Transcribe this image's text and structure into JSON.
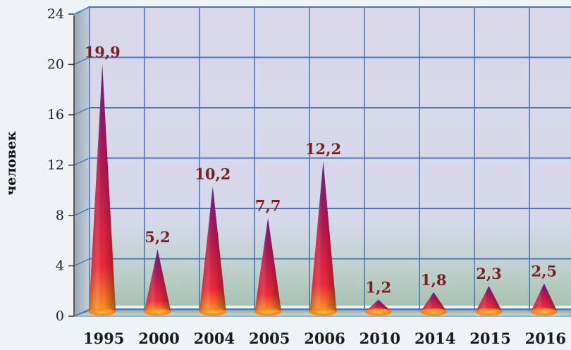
{
  "chart_data": {
    "type": "bar",
    "mark_shape": "cone",
    "categories": [
      "1995",
      "2000",
      "2004",
      "2005",
      "2006",
      "2010",
      "2014",
      "2015",
      "2016"
    ],
    "values": [
      19.9,
      5.2,
      10.2,
      7.7,
      12.2,
      1.2,
      1.8,
      2.3,
      2.5
    ],
    "value_labels": [
      "19,9",
      "5,2",
      "10,2",
      "7,7",
      "12,2",
      "1,2",
      "1,8",
      "2,3",
      "2,5"
    ],
    "ylabel": "человек",
    "xlabel": "",
    "title": "",
    "ylim": [
      0,
      24
    ],
    "yticks": [
      0,
      4,
      8,
      12,
      16,
      20,
      24
    ],
    "ytick_labels": [
      "0",
      "4",
      "8",
      "12",
      "16",
      "20",
      "24"
    ],
    "grid": true,
    "legend": "none",
    "colors": {
      "cone_top": "#6a1f8c",
      "cone_mid": "#c0183e",
      "cone_base": "#ff9a1a",
      "value_label": "#7a1f1f",
      "grid": "#4a77b8",
      "wall_top": "#dad7ea",
      "wall_bottom": "#b9ccc2"
    }
  }
}
